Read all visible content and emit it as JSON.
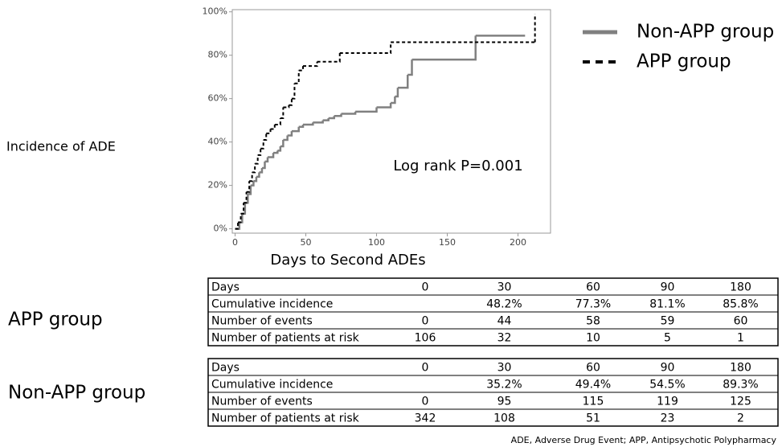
{
  "chart_data": {
    "type": "line",
    "step": "post",
    "x_label": "Days to Second ADEs",
    "y_label": "Incidence of ADE",
    "annotation": "Log rank P=0.001",
    "xlim": [
      -2,
      223
    ],
    "ylim": [
      -2,
      101
    ],
    "xticks": [
      0,
      50,
      100,
      150,
      200
    ],
    "yticks": [
      {
        "value": 0,
        "label": "0%"
      },
      {
        "value": 20,
        "label": "20%"
      },
      {
        "value": 40,
        "label": "40%"
      },
      {
        "value": 60,
        "label": "60%"
      },
      {
        "value": 80,
        "label": "80%"
      },
      {
        "value": 100,
        "label": "100%"
      }
    ],
    "series": [
      {
        "name": "Non-APP group",
        "color": "#808080",
        "dash": "solid",
        "x": [
          0,
          3,
          5,
          7,
          9,
          11,
          13,
          15,
          17,
          19,
          21,
          23,
          27,
          30,
          32,
          34,
          37,
          40,
          45,
          48,
          55,
          62,
          66,
          70,
          75,
          85,
          100,
          110,
          113,
          115,
          122,
          125,
          170,
          205
        ],
        "values": [
          0,
          3,
          7,
          12,
          16,
          20,
          22,
          24,
          26,
          28,
          31,
          33,
          35,
          36,
          38,
          41,
          43,
          45,
          47,
          48,
          49,
          50,
          51,
          52,
          53,
          54,
          56,
          58,
          61,
          65,
          71,
          78,
          89,
          89
        ]
      },
      {
        "name": "APP group",
        "color": "#000000",
        "dash": "dashed",
        "x": [
          0,
          2,
          4,
          6,
          8,
          10,
          12,
          14,
          16,
          18,
          20,
          22,
          25,
          28,
          32,
          34,
          38,
          40,
          42,
          45,
          48,
          58,
          74,
          110,
          212,
          212
        ],
        "values": [
          0,
          3,
          7,
          12,
          17,
          22,
          26,
          30,
          34,
          37,
          41,
          44,
          46,
          48,
          51,
          56,
          57,
          60,
          67,
          73,
          75,
          77,
          81,
          86,
          86,
          99
        ]
      }
    ]
  },
  "tables": [
    {
      "group": "APP group",
      "rows": [
        [
          "Days",
          0,
          30,
          60,
          90,
          180
        ],
        [
          "Cumulative incidence",
          null,
          "48.2%",
          "77.3%",
          "81.1%",
          "85.8%"
        ],
        [
          "Number of events",
          0,
          44,
          58,
          59,
          60
        ],
        [
          "Number of patients at risk",
          106,
          32,
          10,
          5,
          1
        ]
      ]
    },
    {
      "group": "Non-APP group",
      "rows": [
        [
          "Days",
          0,
          30,
          60,
          90,
          180
        ],
        [
          "Cumulative incidence",
          null,
          "35.2%",
          "49.4%",
          "54.5%",
          "89.3%"
        ],
        [
          "Number of events",
          0,
          95,
          115,
          119,
          125
        ],
        [
          "Number of patients at risk",
          342,
          108,
          51,
          23,
          2
        ]
      ]
    }
  ],
  "footnote": "ADE, Adverse Drug Event; APP, Antipsychotic Polypharmacy"
}
